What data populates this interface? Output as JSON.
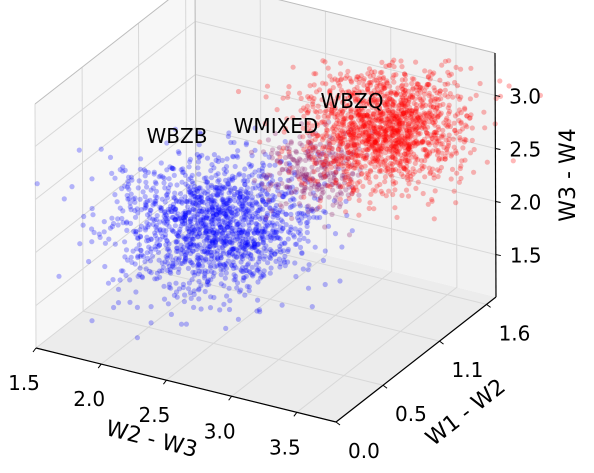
{
  "chart_data": {
    "type": "scatter3d",
    "axes": {
      "x": {
        "label": "W2 - W3",
        "ticks": [
          "1.5",
          "2.0",
          "2.5",
          "3.0",
          "3.5"
        ],
        "range": [
          1.5,
          3.8
        ]
      },
      "y": {
        "label": "W1 - W2",
        "ticks": [
          "0.0",
          "0.5",
          "1.1",
          "1.6"
        ],
        "range": [
          0.0,
          1.7
        ]
      },
      "z": {
        "label": "W3 - W4",
        "ticks": [
          "1.5",
          "2.0",
          "2.5",
          "3.0"
        ],
        "range": [
          1.1,
          3.4
        ]
      }
    },
    "grid": true,
    "series": [
      {
        "name": "WBZB",
        "color": "#0000ff",
        "center": [
          2.55,
          0.45,
          2.25
        ],
        "spread": [
          0.42,
          0.35,
          0.33
        ]
      },
      {
        "name": "WMIXED",
        "color": "#8b1a6b",
        "center": [
          2.95,
          0.95,
          2.55
        ],
        "spread": [
          0.22,
          0.2,
          0.2
        ]
      },
      {
        "name": "WBZQ",
        "color": "#ff0000",
        "center": [
          3.2,
          1.35,
          2.75
        ],
        "spread": [
          0.35,
          0.3,
          0.3
        ]
      }
    ]
  }
}
